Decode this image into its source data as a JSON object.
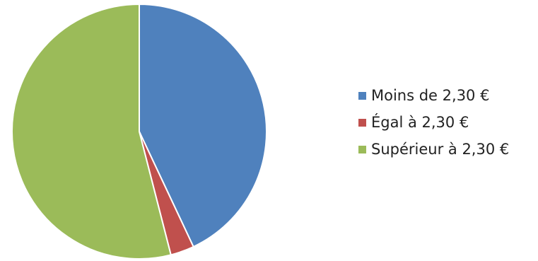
{
  "chart_data": {
    "type": "pie",
    "title": "",
    "categories": [
      "Moins de 2,30 €",
      "Égal à 2,30 €",
      "Supérieur à 2,30 €"
    ],
    "values": [
      43,
      3,
      54
    ],
    "colors": [
      "#4f81bd",
      "#c0504d",
      "#9bbb59"
    ],
    "start_angle_deg": 0,
    "direction": "clockwise",
    "legend_position": "right"
  },
  "legend": {
    "items": [
      {
        "label": "Moins de 2,30 €",
        "color": "#4f81bd"
      },
      {
        "label": "Égal à 2,30 €",
        "color": "#c0504d"
      },
      {
        "label": "Supérieur à 2,30 €",
        "color": "#9bbb59"
      }
    ]
  }
}
